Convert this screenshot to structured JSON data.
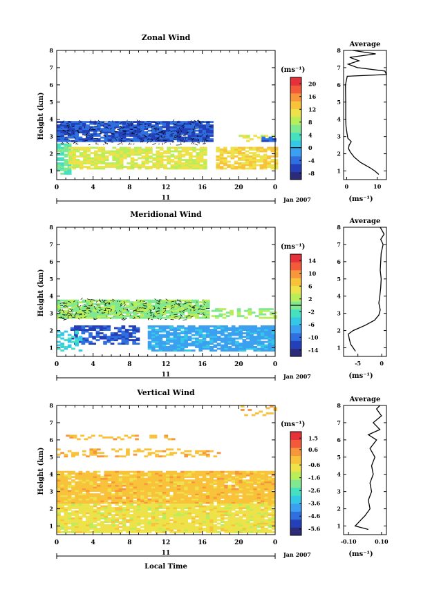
{
  "footer": {
    "xlabel": "Local Time"
  },
  "shared": {
    "x_ticks": [
      "0",
      "4",
      "8",
      "12",
      "16",
      "20",
      "0"
    ],
    "x_tick_values": [
      0,
      4,
      8,
      12,
      16,
      20,
      24
    ],
    "y_ticks": [
      "1",
      "2",
      "3",
      "4",
      "5",
      "6",
      "7",
      "8"
    ],
    "y_tick_values": [
      1,
      2,
      3,
      4,
      5,
      6,
      7,
      8
    ],
    "ylabel": "Height (km)",
    "day_label": "11",
    "date_label": "Jan 2007",
    "unit_label": "(ms⁻¹)",
    "avg_title": "Average"
  },
  "colormap": [
    "#2b2b7a",
    "#2340b8",
    "#2f6fe0",
    "#3aa0ef",
    "#35c7e6",
    "#45e0c0",
    "#7fe890",
    "#b8ee5a",
    "#eee24a",
    "#f8c23a",
    "#f7963a",
    "#f25a3a",
    "#e6303a"
  ],
  "chart_data": [
    {
      "type": "heatmap",
      "title": "Zonal Wind",
      "x_range": [
        0,
        24
      ],
      "y_range": [
        0.5,
        8
      ],
      "colorbar": {
        "ticks": [
          "20",
          "16",
          "12",
          "8",
          "4",
          "0",
          "-4",
          "-8"
        ],
        "values": [
          20,
          16,
          12,
          8,
          4,
          0,
          -4,
          -8
        ],
        "range": [
          -10,
          22
        ],
        "zero_line": 0
      },
      "regions": [
        {
          "x": [
            0,
            17
          ],
          "y": [
            2.7,
            3.9
          ],
          "value": -5,
          "fill": 0.92
        },
        {
          "x": [
            0,
            1.3
          ],
          "y": [
            0.8,
            2.6
          ],
          "value": 5,
          "fill": 0.85
        },
        {
          "x": [
            1.3,
            16.5
          ],
          "y": [
            1.1,
            2.4
          ],
          "value": 10,
          "fill": 0.8
        },
        {
          "x": [
            17.5,
            24
          ],
          "y": [
            1.1,
            2.4
          ],
          "value": 12,
          "fill": 0.75
        },
        {
          "x": [
            20,
            23.8
          ],
          "y": [
            2.7,
            3.1
          ],
          "value": 10,
          "fill": 0.45
        },
        {
          "x": [
            22.5,
            23.8
          ],
          "y": [
            2.7,
            3.0
          ],
          "value": -4,
          "fill": 0.6
        }
      ],
      "contour_box": {
        "x": [
          0.3,
          16.8
        ],
        "y": [
          2.5,
          3.9
        ]
      },
      "average": {
        "x_ticks": [
          "0",
          "10"
        ],
        "x_tick_values": [
          0,
          10
        ],
        "x_range": [
          -1,
          13
        ],
        "xlabel": "(ms⁻¹)",
        "profile": {
          "height": [
            0.8,
            1.0,
            1.2,
            1.5,
            1.8,
            2.1,
            2.3,
            2.5,
            2.7,
            2.9,
            3.2,
            3.6,
            4.0,
            5.0,
            6.0,
            6.5,
            6.6,
            6.8,
            7.0,
            7.2,
            7.4,
            7.6,
            7.8,
            8.0
          ],
          "value": [
            10.5,
            9.2,
            7.5,
            4.5,
            2.5,
            1.2,
            0.6,
            0.8,
            1.5,
            0.4,
            0.1,
            -0.2,
            -0.3,
            -0.3,
            -0.4,
            0.2,
            13,
            12.5,
            3.5,
            0.5,
            4.0,
            1.0,
            9.5,
            2.0
          ]
        }
      }
    },
    {
      "type": "heatmap",
      "title": "Meridional Wind",
      "x_range": [
        0,
        24
      ],
      "y_range": [
        0.5,
        8
      ],
      "colorbar": {
        "ticks": [
          "14",
          "10",
          "6",
          "2",
          "-2",
          "-6",
          "-10",
          "-14"
        ],
        "values": [
          14,
          10,
          6,
          2,
          -2,
          -6,
          -10,
          -14
        ],
        "range": [
          -16,
          16
        ],
        "zero_line": 0
      },
      "regions": [
        {
          "x": [
            0,
            16.5
          ],
          "y": [
            2.7,
            3.8
          ],
          "value": 1,
          "fill": 0.9
        },
        {
          "x": [
            17,
            24
          ],
          "y": [
            2.7,
            3.3
          ],
          "value": 1,
          "fill": 0.5
        },
        {
          "x": [
            1.5,
            9
          ],
          "y": [
            1.2,
            2.3
          ],
          "value": -11,
          "fill": 0.6
        },
        {
          "x": [
            10,
            24
          ],
          "y": [
            0.8,
            2.3
          ],
          "value": -7,
          "fill": 0.85
        },
        {
          "x": [
            0,
            2.5
          ],
          "y": [
            0.8,
            2.0
          ],
          "value": -4,
          "fill": 0.45
        }
      ],
      "contour_box": {
        "x": [
          0.3,
          16.5
        ],
        "y": [
          2.6,
          3.8
        ]
      },
      "average": {
        "x_ticks": [
          "-5",
          "0"
        ],
        "x_tick_values": [
          -5,
          0
        ],
        "x_range": [
          -8,
          1
        ],
        "xlabel": "(ms⁻¹)",
        "profile": {
          "height": [
            0.8,
            1.0,
            1.2,
            1.5,
            1.8,
            2.0,
            2.3,
            2.6,
            2.9,
            3.2,
            3.6,
            4.0,
            4.5,
            5.0,
            5.5,
            6.0,
            6.5,
            7.0,
            7.3,
            7.6,
            8.0
          ],
          "value": [
            -5.5,
            -6.0,
            -6.5,
            -6.8,
            -7.0,
            -6.0,
            -3.5,
            -1.5,
            -0.6,
            -0.3,
            -0.6,
            -0.4,
            -0.2,
            -0.1,
            -0.3,
            -0.2,
            -0.1,
            0.3,
            -0.2,
            0.5,
            -0.3
          ]
        }
      }
    },
    {
      "type": "heatmap",
      "title": "Vertical Wind",
      "x_range": [
        0,
        24
      ],
      "y_range": [
        0.5,
        8
      ],
      "colorbar": {
        "ticks": [
          "1.5",
          "0.6",
          "-0.6",
          "-1.6",
          "-2.6",
          "-3.6",
          "-4.6",
          "-5.6"
        ],
        "values": [
          1.5,
          0.6,
          -0.6,
          -1.6,
          -2.6,
          -3.6,
          -4.6,
          -5.6
        ],
        "range": [
          -6.1,
          2.0
        ]
      },
      "regions": [
        {
          "x": [
            0,
            24
          ],
          "y": [
            2.3,
            4.2
          ],
          "value": -0.2,
          "fill": 0.95
        },
        {
          "x": [
            0,
            24
          ],
          "y": [
            0.6,
            2.3
          ],
          "value": -0.8,
          "fill": 0.9
        },
        {
          "x": [
            0,
            18
          ],
          "y": [
            5.0,
            5.5
          ],
          "value": -0.1,
          "fill": 0.3
        },
        {
          "x": [
            1,
            13
          ],
          "y": [
            6.0,
            6.3
          ],
          "value": -0.1,
          "fill": 0.35
        },
        {
          "x": [
            19,
            24
          ],
          "y": [
            7.4,
            8.0
          ],
          "value": -0.1,
          "fill": 0.2
        }
      ],
      "average": {
        "x_ticks": [
          "-0.10",
          "0.10"
        ],
        "x_tick_values": [
          -0.1,
          0.1
        ],
        "x_range": [
          -0.13,
          0.13
        ],
        "xlabel": "(ms⁻¹)",
        "profile": {
          "height": [
            0.8,
            1.0,
            1.3,
            1.6,
            2.0,
            2.5,
            3.0,
            3.5,
            4.0,
            4.5,
            5.0,
            5.5,
            6.0,
            6.3,
            6.6,
            7.0,
            7.4,
            7.8,
            8.0
          ],
          "value": [
            0.02,
            -0.06,
            -0.03,
            0.0,
            0.03,
            0.02,
            0.04,
            0.03,
            0.05,
            0.04,
            0.06,
            0.03,
            0.07,
            0.02,
            0.09,
            0.05,
            0.1,
            0.07,
            0.09
          ]
        }
      }
    }
  ]
}
